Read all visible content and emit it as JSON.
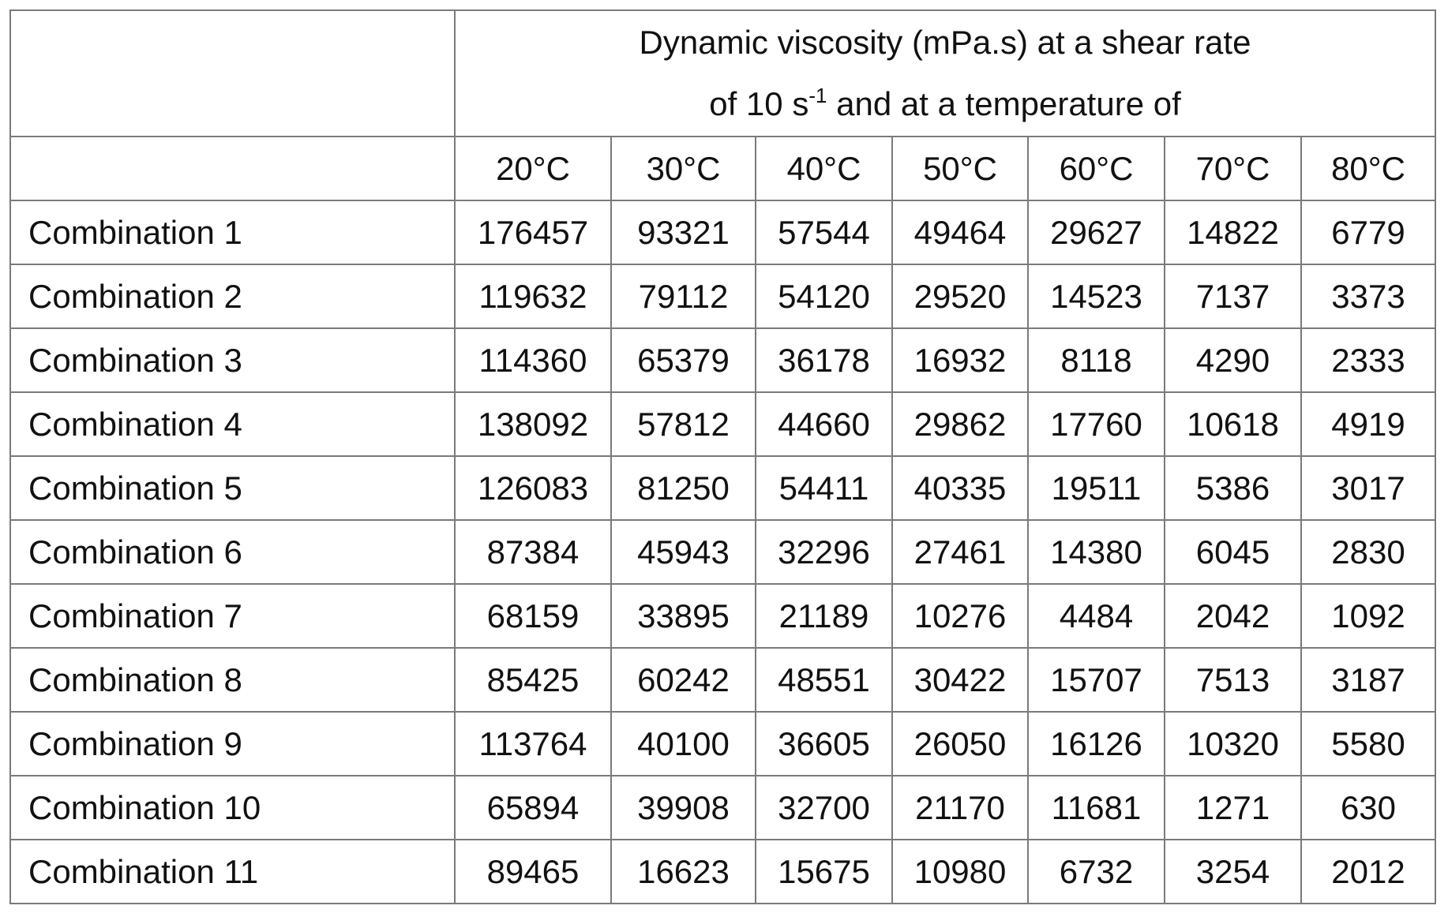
{
  "table": {
    "header": {
      "line1": "Dynamic viscosity (mPa.s) at a shear rate",
      "line2_start": "of 10 s",
      "line2_sup": "-1",
      "line2_end": " and at a temperature of"
    },
    "columns": [
      "20°C",
      "30°C",
      "40°C",
      "50°C",
      "60°C",
      "70°C",
      "80°C"
    ],
    "rows": [
      {
        "label": "Combination 1",
        "values": [
          176457,
          93321,
          57544,
          49464,
          29627,
          14822,
          6779
        ]
      },
      {
        "label": "Combination 2",
        "values": [
          119632,
          79112,
          54120,
          29520,
          14523,
          7137,
          3373
        ]
      },
      {
        "label": "Combination 3",
        "values": [
          114360,
          65379,
          36178,
          16932,
          8118,
          4290,
          2333
        ]
      },
      {
        "label": "Combination 4",
        "values": [
          138092,
          57812,
          44660,
          29862,
          17760,
          10618,
          4919
        ]
      },
      {
        "label": "Combination 5",
        "values": [
          126083,
          81250,
          54411,
          40335,
          19511,
          5386,
          3017
        ]
      },
      {
        "label": "Combination 6",
        "values": [
          87384,
          45943,
          32296,
          27461,
          14380,
          6045,
          2830
        ]
      },
      {
        "label": "Combination 7",
        "values": [
          68159,
          33895,
          21189,
          10276,
          4484,
          2042,
          1092
        ]
      },
      {
        "label": "Combination 8",
        "values": [
          85425,
          60242,
          48551,
          30422,
          15707,
          7513,
          3187
        ]
      },
      {
        "label": "Combination 9",
        "values": [
          113764,
          40100,
          36605,
          26050,
          16126,
          10320,
          5580
        ]
      },
      {
        "label": "Combination 10",
        "values": [
          65894,
          39908,
          32700,
          21170,
          11681,
          1271,
          630
        ]
      },
      {
        "label": "Combination 11",
        "values": [
          89465,
          16623,
          15675,
          10980,
          6732,
          3254,
          2012
        ]
      }
    ]
  }
}
